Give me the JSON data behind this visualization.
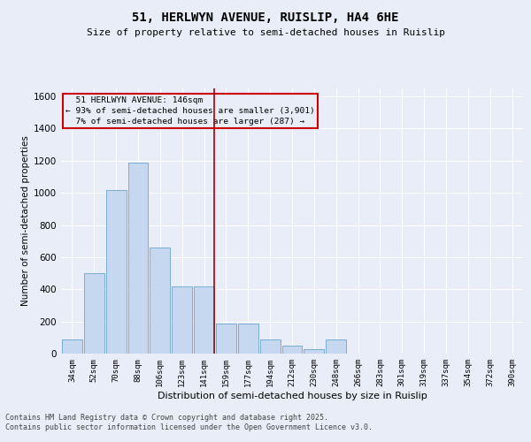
{
  "title1": "51, HERLWYN AVENUE, RUISLIP, HA4 6HE",
  "title2": "Size of property relative to semi-detached houses in Ruislip",
  "xlabel": "Distribution of semi-detached houses by size in Ruislip",
  "ylabel": "Number of semi-detached properties",
  "bar_labels": [
    "34sqm",
    "52sqm",
    "70sqm",
    "88sqm",
    "106sqm",
    "123sqm",
    "141sqm",
    "159sqm",
    "177sqm",
    "194sqm",
    "212sqm",
    "230sqm",
    "248sqm",
    "266sqm",
    "283sqm",
    "301sqm",
    "319sqm",
    "337sqm",
    "354sqm",
    "372sqm",
    "390sqm"
  ],
  "bar_values": [
    90,
    500,
    1020,
    1190,
    660,
    420,
    420,
    185,
    185,
    90,
    50,
    25,
    90,
    0,
    0,
    0,
    0,
    0,
    0,
    0,
    0
  ],
  "bar_color": "#c5d8f0",
  "bar_edge_color": "#7aadd4",
  "vline_x": 7.0,
  "property_size": "146sqm",
  "pct_smaller": 93,
  "n_smaller": 3901,
  "pct_larger": 7,
  "n_larger": 287,
  "vline_color": "#aa0000",
  "annotation_box_color": "#cc0000",
  "ylim": [
    0,
    1650
  ],
  "yticks": [
    0,
    200,
    400,
    600,
    800,
    1000,
    1200,
    1400,
    1600
  ],
  "footer1": "Contains HM Land Registry data © Crown copyright and database right 2025.",
  "footer2": "Contains public sector information licensed under the Open Government Licence v3.0.",
  "background_color": "#e8edf8",
  "grid_color": "#ffffff"
}
